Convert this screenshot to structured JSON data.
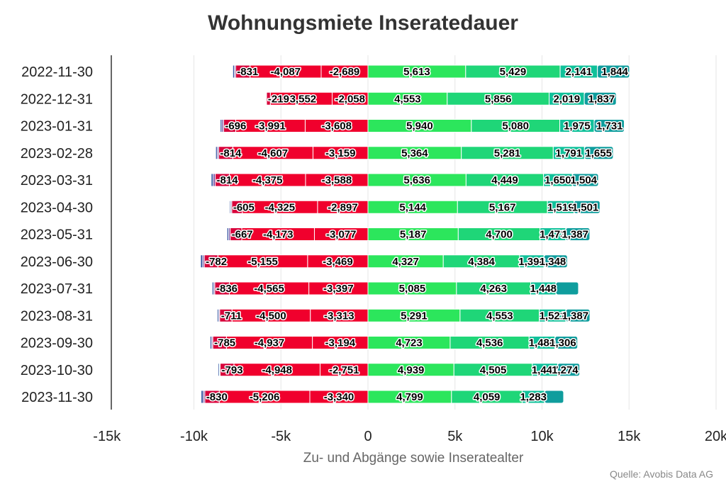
{
  "chart_data": {
    "type": "bar",
    "orientation": "horizontal",
    "stacked": true,
    "title": "Wohnungsmiete Inseratedauer",
    "xlabel": "Zu- und Abgänge sowie Inseratealter",
    "ylabel": "",
    "source": "Quelle: Avobis Data AG",
    "xlim": [
      -15000,
      20000
    ],
    "xticks": [
      -15000,
      -10000,
      -5000,
      0,
      5000,
      10000,
      15000,
      20000
    ],
    "xtick_labels": [
      "-15k",
      "-10k",
      "-5k",
      "0",
      "5k",
      "10k",
      "15k",
      "20k"
    ],
    "grid": true,
    "categories": [
      "2022-11-30",
      "2022-12-31",
      "2023-01-31",
      "2023-02-28",
      "2023-03-31",
      "2023-04-30",
      "2023-05-31",
      "2023-06-30",
      "2023-07-31",
      "2023-08-31",
      "2023-09-30",
      "2023-10-30",
      "2023-11-30"
    ],
    "negative_series": [
      {
        "color": "#f0002d",
        "values": [
          -2689,
          -2058,
          -3608,
          -3159,
          -3588,
          -2897,
          -3077,
          -3469,
          -3397,
          -3313,
          -3194,
          -2751,
          -3340
        ]
      },
      {
        "color": "#f0002d",
        "values": [
          -4087,
          -3552,
          -3991,
          -4607,
          -4375,
          -4325,
          -4173,
          -5155,
          -4565,
          -4500,
          -4937,
          -4948,
          -5206
        ]
      },
      {
        "color": "#d8003a",
        "values": [
          -831,
          -219,
          -696,
          -814,
          -814,
          -605,
          -667,
          -782,
          -836,
          -711,
          -785,
          -793,
          -830
        ]
      },
      {
        "color": "#7a4fa0",
        "values": [
          -70,
          -40,
          -100,
          -80,
          -120,
          -60,
          -90,
          -90,
          -60,
          -50,
          -60,
          -40,
          -90
        ]
      },
      {
        "color": "#2f4f9e",
        "values": [
          -90,
          -40,
          -90,
          -90,
          -110,
          -60,
          -90,
          -120,
          -90,
          -80,
          -90,
          -70,
          -120
        ]
      }
    ],
    "positive_series": [
      {
        "color": "#2ce65c",
        "values": [
          5613,
          4553,
          5940,
          5364,
          5636,
          5144,
          5187,
          4327,
          5085,
          5291,
          4723,
          4939,
          4799
        ]
      },
      {
        "color": "#1fd678",
        "values": [
          5429,
          5856,
          5080,
          5281,
          4449,
          5167,
          4700,
          4384,
          4263,
          4553,
          4536,
          4505,
          4059
        ]
      },
      {
        "color": "#10c19a",
        "values": [
          2141,
          2019,
          1975,
          1791,
          1650,
          1519,
          1473,
          1398,
          1448,
          1521,
          1480,
          1447,
          1283
        ]
      },
      {
        "color": "#0f9d9d",
        "values": [
          1844,
          1837,
          1731,
          1655,
          1504,
          1501,
          1387,
          1348,
          1300,
          1387,
          1306,
          1274,
          1100
        ]
      }
    ],
    "labels": {
      "neg": [
        [
          "-2,689",
          "-4,087",
          "-831"
        ],
        [
          "-2,058",
          "-3,552",
          "-219"
        ],
        [
          "-3,608",
          "-3,991",
          "-696"
        ],
        [
          "-3,159",
          "-4,607",
          "-814"
        ],
        [
          "-3,588",
          "-4,375",
          "-814"
        ],
        [
          "-2,897",
          "-4,325",
          "-605"
        ],
        [
          "-3,077",
          "-4,173",
          "-667"
        ],
        [
          "-3,469",
          "-5,155",
          "-782"
        ],
        [
          "-3,397",
          "-4,565",
          "-836"
        ],
        [
          "-3,313",
          "-4,500",
          "-711"
        ],
        [
          "-3,194",
          "-4,937",
          "-785"
        ],
        [
          "-2,751",
          "-4,948",
          "-793"
        ],
        [
          "-3,340",
          "-5,206",
          "-830"
        ]
      ],
      "pos": [
        [
          "5,613",
          "5,429",
          "2,141",
          "1,844"
        ],
        [
          "4,553",
          "5,856",
          "2,019",
          "1,837"
        ],
        [
          "5,940",
          "5,080",
          "1,975",
          "1,731"
        ],
        [
          "5,364",
          "5,281",
          "1,791",
          "1,655"
        ],
        [
          "5,636",
          "4,449",
          "1,650",
          "1,504"
        ],
        [
          "5,144",
          "5,167",
          "1,519",
          "1,501"
        ],
        [
          "5,187",
          "4,700",
          "1,473",
          "1,387"
        ],
        [
          "4,327",
          "4,384",
          "1,398",
          "1,348"
        ],
        [
          "5,085",
          "4,263",
          "1,448",
          ""
        ],
        [
          "5,291",
          "4,553",
          "1,521",
          "1,387"
        ],
        [
          "4,723",
          "4,536",
          "1,480",
          "1,306"
        ],
        [
          "4,939",
          "4,505",
          "1,447",
          "1,274"
        ],
        [
          "4,799",
          "4,059",
          "1,283",
          ""
        ]
      ]
    }
  }
}
